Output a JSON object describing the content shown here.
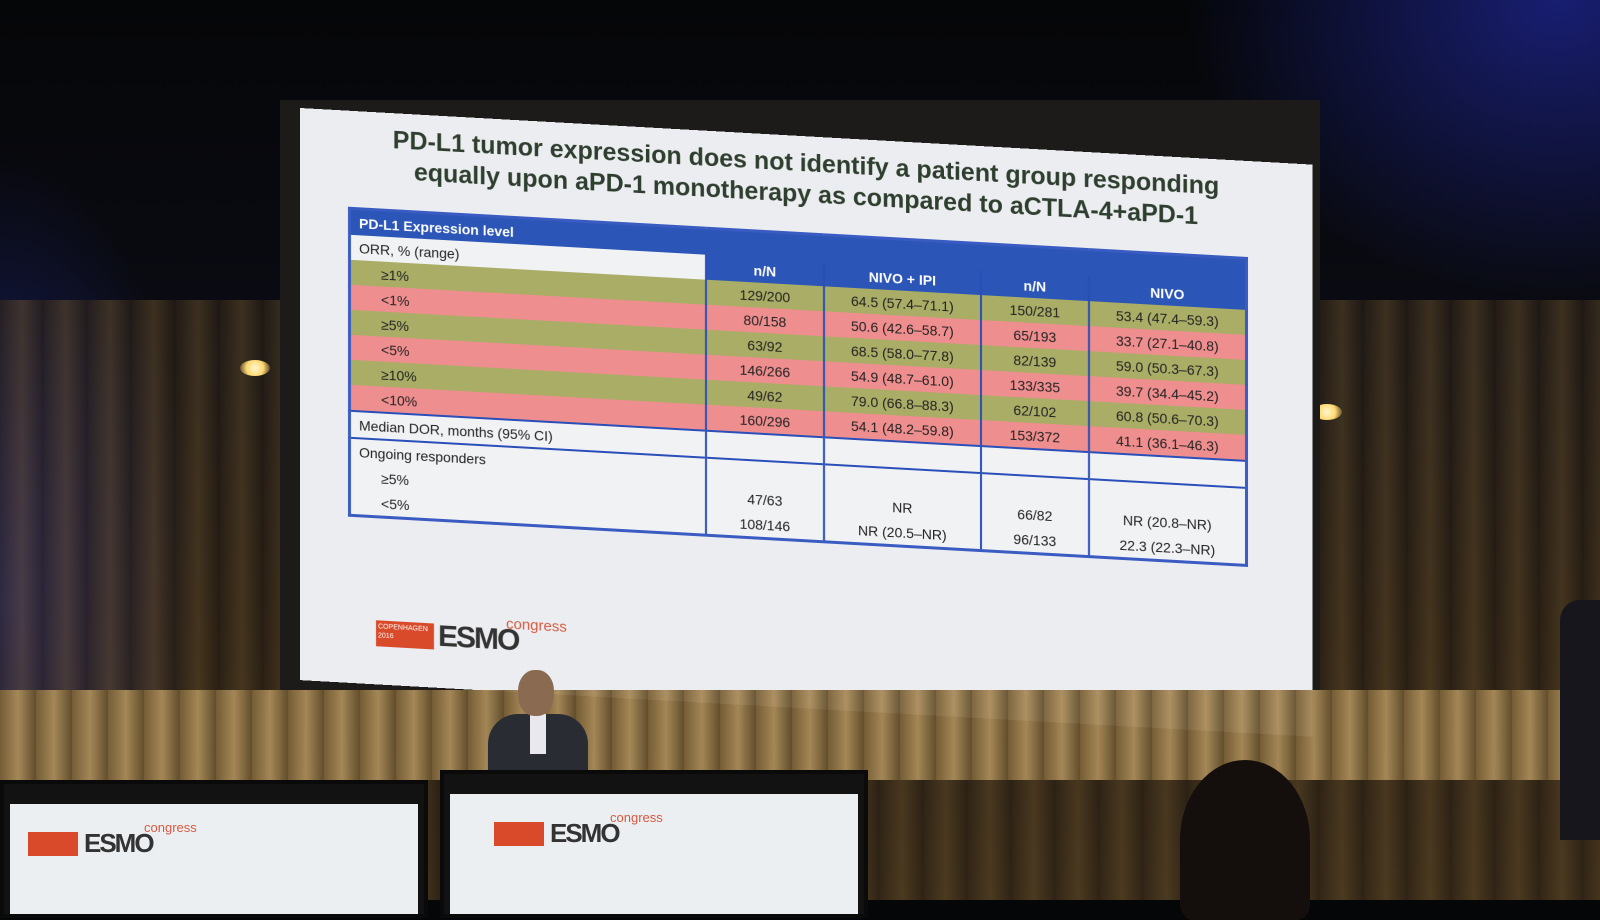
{
  "slide": {
    "title_line1": "PD-L1 tumor expression does not identify a patient group responding",
    "title_line2": "equally upon aPD-1 monotherapy as compared to aCTLA-4+aPD-1",
    "table": {
      "header_main": "PD-L1 Expression level",
      "header_orr": "ORR, % (range)",
      "col_nN_1": "n/N",
      "col_nivo_ipi": "NIVO + IPI",
      "col_nN_2": "n/N",
      "col_nivo": "NIVO",
      "orr_rows": [
        {
          "label": "≥1%",
          "nN1": "129/200",
          "v1": "64.5 (57.4–71.1)",
          "nN2": "150/281",
          "v2": "53.4 (47.4–59.3)",
          "color": "green"
        },
        {
          "label": "<1%",
          "nN1": "80/158",
          "v1": "50.6 (42.6–58.7)",
          "nN2": "65/193",
          "v2": "33.7 (27.1–40.8)",
          "color": "red"
        },
        {
          "label": "≥5%",
          "nN1": "63/92",
          "v1": "68.5 (58.0–77.8)",
          "nN2": "82/139",
          "v2": "59.0 (50.3–67.3)",
          "color": "green"
        },
        {
          "label": "<5%",
          "nN1": "146/266",
          "v1": "54.9 (48.7–61.0)",
          "nN2": "133/335",
          "v2": "39.7 (34.4–45.2)",
          "color": "red"
        },
        {
          "label": "≥10%",
          "nN1": "49/62",
          "v1": "79.0 (66.8–88.3)",
          "nN2": "62/102",
          "v2": "60.8 (50.6–70.3)",
          "color": "green"
        },
        {
          "label": "<10%",
          "nN1": "160/296",
          "v1": "54.1 (48.2–59.8)",
          "nN2": "153/372",
          "v2": "41.1 (36.1–46.3)",
          "color": "red"
        }
      ],
      "median_dor": "Median DOR, months (95% CI)",
      "ongoing": "Ongoing responders",
      "dor_rows": [
        {
          "label": "≥5%",
          "nN1": "47/63",
          "v1": "NR",
          "nN2": "66/82",
          "v2": "NR (20.8–NR)"
        },
        {
          "label": "<5%",
          "nN1": "108/146",
          "v1": "NR (20.5–NR)",
          "nN2": "96/133",
          "v2": "22.3 (22.3–NR)"
        }
      ]
    },
    "logo": {
      "city": "COPENHAGEN",
      "year": "2016",
      "brand": "ESMO",
      "suffix": "congress"
    }
  },
  "colors": {
    "header_blue": "#2b55b6",
    "row_green": "#a9ad66",
    "row_red": "#ef8e8e",
    "esmo_red": "#d84a2a"
  }
}
